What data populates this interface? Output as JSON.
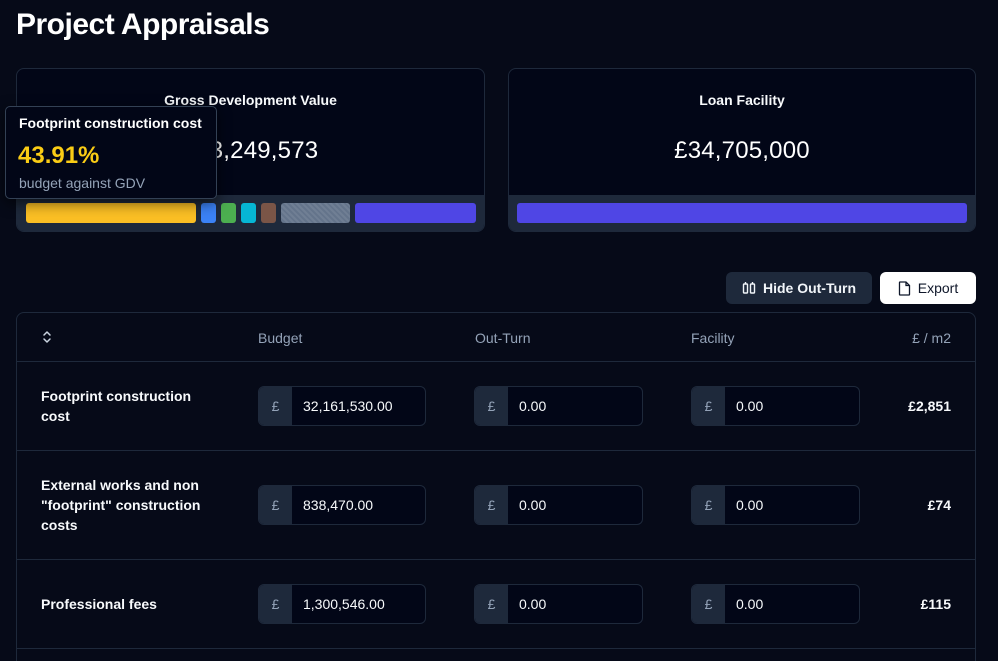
{
  "page": {
    "title": "Project Appraisals"
  },
  "cards": {
    "gdv": {
      "label": "Gross Development Value",
      "value": "£73,249,573",
      "value_visible": "3,249,573",
      "segments": [
        {
          "name": "footprint-construction",
          "color": "#fbbf24"
        },
        {
          "name": "external-works",
          "color": "#3b82f6"
        },
        {
          "name": "professional-fees",
          "color": "#4caf50"
        },
        {
          "name": "segment-teal",
          "color": "#06b6d4"
        },
        {
          "name": "segment-brown",
          "color": "#7a5547"
        },
        {
          "name": "segment-unallocated",
          "color": "#64748b"
        },
        {
          "name": "loan-facility",
          "color": "#4f46e5"
        }
      ]
    },
    "loan": {
      "label": "Loan Facility",
      "value": "£34,705,000",
      "bar_color": "#4f46e5"
    }
  },
  "tooltip": {
    "title": "Footprint construction cost",
    "percent": "43.91%",
    "subtitle": "budget against GDV"
  },
  "toolbar": {
    "hide_outturn_label": "Hide Out-Turn",
    "export_label": "Export"
  },
  "table": {
    "headers": {
      "budget": "Budget",
      "outturn": "Out-Turn",
      "facility": "Facility",
      "per_m2": "£ / m2"
    },
    "currency_prefix": "£",
    "rows": [
      {
        "name": "Footprint construction cost",
        "budget": "32,161,530.00",
        "outturn": "0.00",
        "facility": "0.00",
        "per_m2": "£2,851"
      },
      {
        "name": "External works and non \"footprint\" construction costs",
        "budget": "838,470.00",
        "outturn": "0.00",
        "facility": "0.00",
        "per_m2": "£74"
      },
      {
        "name": "Professional fees",
        "budget": "1,300,546.00",
        "outturn": "0.00",
        "facility": "0.00",
        "per_m2": "£115"
      }
    ]
  }
}
